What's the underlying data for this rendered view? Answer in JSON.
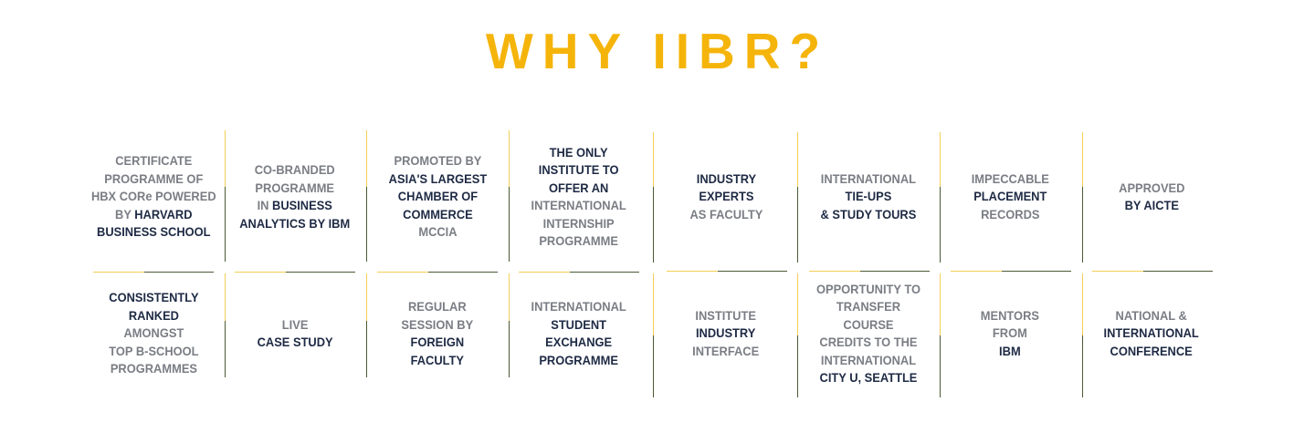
{
  "heading": "WHY IIBR?",
  "row1": [
    {
      "lines": [
        [
          {
            "t": "CERTIFICATE",
            "d": false
          }
        ],
        [
          {
            "t": "PROGRAMME OF",
            "d": false
          }
        ],
        [
          {
            "t": "HBX CORe POWERED",
            "d": false
          }
        ],
        [
          {
            "t": "BY ",
            "d": false
          },
          {
            "t": "HARVARD",
            "d": true
          }
        ],
        [
          {
            "t": "BUSINESS SCHOOL",
            "d": true
          }
        ]
      ]
    },
    {
      "lines": [
        [
          {
            "t": "CO-BRANDED",
            "d": false
          }
        ],
        [
          {
            "t": "PROGRAMME",
            "d": false
          }
        ],
        [
          {
            "t": "IN ",
            "d": false
          },
          {
            "t": "BUSINESS",
            "d": true
          }
        ],
        [
          {
            "t": "ANALYTICS BY IBM",
            "d": true
          }
        ]
      ]
    },
    {
      "lines": [
        [
          {
            "t": "PROMOTED BY",
            "d": false
          }
        ],
        [
          {
            "t": "ASIA'S LARGEST",
            "d": true
          }
        ],
        [
          {
            "t": "CHAMBER OF",
            "d": true
          }
        ],
        [
          {
            "t": "COMMERCE",
            "d": true
          }
        ],
        [
          {
            "t": "MCCIA",
            "d": false
          }
        ]
      ]
    },
    {
      "lines": [
        [
          {
            "t": "THE ONLY",
            "d": true
          }
        ],
        [
          {
            "t": "INSTITUTE TO",
            "d": true
          }
        ],
        [
          {
            "t": "OFFER AN",
            "d": true
          }
        ],
        [
          {
            "t": "INTERNATIONAL",
            "d": false
          }
        ],
        [
          {
            "t": "INTERNSHIP",
            "d": false
          }
        ],
        [
          {
            "t": "PROGRAMME",
            "d": false
          }
        ]
      ]
    },
    {
      "lines": [
        [
          {
            "t": "INDUSTRY",
            "d": true
          }
        ],
        [
          {
            "t": "EXPERTS",
            "d": true
          }
        ],
        [
          {
            "t": "AS FACULTY",
            "d": false
          }
        ]
      ]
    },
    {
      "lines": [
        [
          {
            "t": "INTERNATIONAL",
            "d": false
          }
        ],
        [
          {
            "t": "TIE-UPS",
            "d": true
          }
        ],
        [
          {
            "t": "& STUDY TOURS",
            "d": true
          }
        ]
      ]
    },
    {
      "lines": [
        [
          {
            "t": "IMPECCABLE",
            "d": false
          }
        ],
        [
          {
            "t": "PLACEMENT",
            "d": true
          }
        ],
        [
          {
            "t": "RECORDS",
            "d": false
          }
        ]
      ]
    },
    {
      "lines": [
        [
          {
            "t": "APPROVED",
            "d": false
          }
        ],
        [
          {
            "t": "BY AICTE",
            "d": true
          }
        ]
      ]
    }
  ],
  "row2": [
    {
      "lines": [
        [
          {
            "t": "CONSISTENTLY",
            "d": true
          }
        ],
        [
          {
            "t": "RANKED",
            "d": true
          }
        ],
        [
          {
            "t": "AMONGST",
            "d": false
          }
        ],
        [
          {
            "t": "TOP B-SCHOOL",
            "d": false
          }
        ],
        [
          {
            "t": "PROGRAMMES",
            "d": false
          }
        ]
      ]
    },
    {
      "lines": [
        [
          {
            "t": "LIVE",
            "d": false
          }
        ],
        [
          {
            "t": "CASE STUDY",
            "d": true
          }
        ]
      ]
    },
    {
      "lines": [
        [
          {
            "t": "REGULAR",
            "d": false
          }
        ],
        [
          {
            "t": "SESSION BY",
            "d": false
          }
        ],
        [
          {
            "t": "FOREIGN",
            "d": true
          }
        ],
        [
          {
            "t": "FACULTY",
            "d": true
          }
        ]
      ]
    },
    {
      "lines": [
        [
          {
            "t": "INTERNATIONAL",
            "d": false
          }
        ],
        [
          {
            "t": "STUDENT",
            "d": true
          }
        ],
        [
          {
            "t": "EXCHANGE",
            "d": true
          }
        ],
        [
          {
            "t": "PROGRAMME",
            "d": true
          }
        ]
      ]
    },
    {
      "lines": [
        [
          {
            "t": "INSTITUTE",
            "d": false
          }
        ],
        [
          {
            "t": "INDUSTRY",
            "d": true
          }
        ],
        [
          {
            "t": "INTERFACE",
            "d": false
          }
        ]
      ]
    },
    {
      "lines": [
        [
          {
            "t": "OPPORTUNITY TO",
            "d": false
          }
        ],
        [
          {
            "t": "TRANSFER",
            "d": false
          }
        ],
        [
          {
            "t": "COURSE",
            "d": false
          }
        ],
        [
          {
            "t": "CREDITS TO THE",
            "d": false
          }
        ],
        [
          {
            "t": "INTERNATIONAL",
            "d": false
          }
        ],
        [
          {
            "t": "CITY U, SEATTLE",
            "d": true
          }
        ]
      ]
    },
    {
      "lines": [
        [
          {
            "t": "MENTORS",
            "d": false
          }
        ],
        [
          {
            "t": "FROM",
            "d": false
          }
        ],
        [
          {
            "t": "IBM",
            "d": true
          }
        ]
      ]
    },
    {
      "lines": [
        [
          {
            "t": "NATIONAL &",
            "d": false
          }
        ],
        [
          {
            "t": "INTERNATIONAL",
            "d": true
          }
        ],
        [
          {
            "t": "CONFERENCE",
            "d": true
          }
        ]
      ]
    }
  ],
  "colors": {
    "heading": "#f5b40a",
    "text_light": "#7a7d84",
    "text_dark": "#1e2a44",
    "line_yellow": "#f3cf55",
    "line_olive": "#4b5a36"
  }
}
